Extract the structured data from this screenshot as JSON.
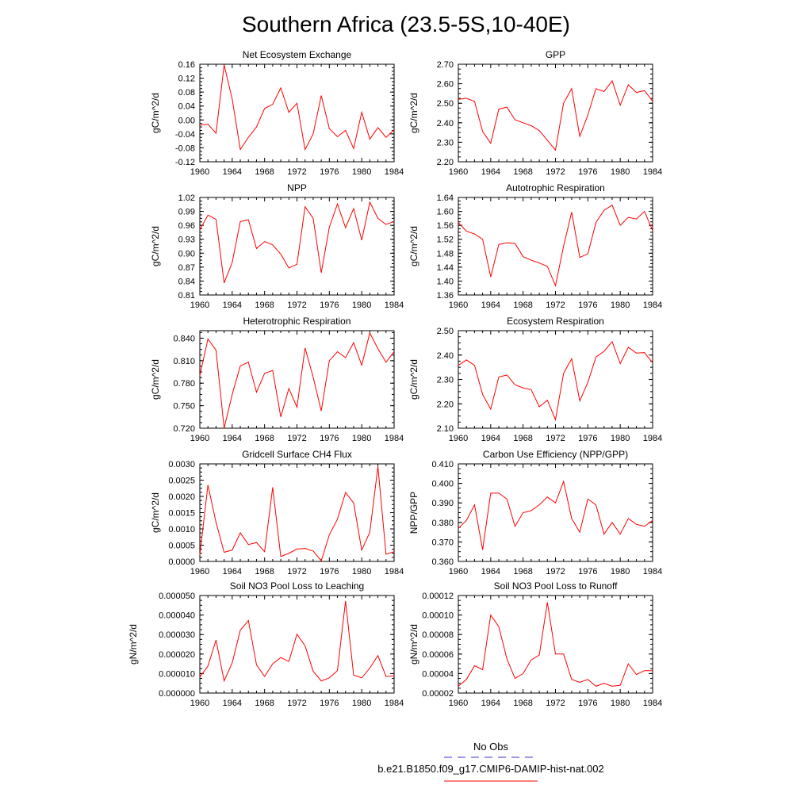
{
  "figure": {
    "title": "Southern Africa (23.5-5S,10-40E)",
    "legend": [
      {
        "label": "No Obs",
        "color": "#3333cc",
        "dashed": true
      },
      {
        "label": "b.e21.B1850.f09_g17.CMIP6-DAMIP-hist-nat.002",
        "color": "#ff0000",
        "dashed": false
      }
    ]
  },
  "chart_data": [
    {
      "type": "line",
      "title": "Net Ecosystem Exchange",
      "ylabel": "gC/m^2/d",
      "x": [
        1960,
        1961,
        1962,
        1963,
        1964,
        1965,
        1966,
        1967,
        1968,
        1969,
        1970,
        1971,
        1972,
        1973,
        1974,
        1975,
        1976,
        1977,
        1978,
        1979,
        1980,
        1981,
        1982,
        1983,
        1984
      ],
      "xlim": [
        1960,
        1984
      ],
      "xticks": [
        "1960",
        "1964",
        "1968",
        "1972",
        "1976",
        "1980",
        "1984"
      ],
      "ylim": [
        -0.12,
        0.16
      ],
      "yticks": [
        "-0.12",
        "-0.08",
        "-0.04",
        "0.00",
        "0.04",
        "0.08",
        "0.12",
        "0.16"
      ],
      "series": [
        {
          "color": "#ff0000",
          "values": [
            -0.015,
            -0.012,
            -0.038,
            0.158,
            0.06,
            -0.085,
            -0.05,
            -0.02,
            0.033,
            0.045,
            0.092,
            0.022,
            0.048,
            -0.085,
            -0.04,
            0.07,
            -0.025,
            -0.048,
            -0.03,
            -0.082,
            0.022,
            -0.055,
            -0.022,
            -0.05,
            -0.028
          ]
        }
      ]
    },
    {
      "type": "line",
      "title": "GPP",
      "ylabel": "gC/m^2/d",
      "x": [
        1960,
        1961,
        1962,
        1963,
        1964,
        1965,
        1966,
        1967,
        1968,
        1969,
        1970,
        1971,
        1972,
        1973,
        1974,
        1975,
        1976,
        1977,
        1978,
        1979,
        1980,
        1981,
        1982,
        1983,
        1984
      ],
      "xlim": [
        1960,
        1984
      ],
      "xticks": [
        "1960",
        "1964",
        "1968",
        "1972",
        "1976",
        "1980",
        "1984"
      ],
      "ylim": [
        2.2,
        2.7
      ],
      "yticks": [
        "2.20",
        "2.30",
        "2.40",
        "2.50",
        "2.60",
        "2.70"
      ],
      "series": [
        {
          "color": "#ff0000",
          "values": [
            2.52,
            2.525,
            2.51,
            2.355,
            2.295,
            2.47,
            2.48,
            2.415,
            2.4,
            2.385,
            2.36,
            2.31,
            2.26,
            2.5,
            2.575,
            2.33,
            2.44,
            2.575,
            2.56,
            2.615,
            2.49,
            2.595,
            2.555,
            2.565,
            2.51
          ]
        }
      ]
    },
    {
      "type": "line",
      "title": "NPP",
      "ylabel": "gC/m^2/d",
      "x": [
        1960,
        1961,
        1962,
        1963,
        1964,
        1965,
        1966,
        1967,
        1968,
        1969,
        1970,
        1971,
        1972,
        1973,
        1974,
        1975,
        1976,
        1977,
        1978,
        1979,
        1980,
        1981,
        1982,
        1983,
        1984
      ],
      "xlim": [
        1960,
        1984
      ],
      "xticks": [
        "1960",
        "1964",
        "1968",
        "1972",
        "1976",
        "1980",
        "1984"
      ],
      "ylim": [
        0.81,
        1.02
      ],
      "yticks": [
        "0.81",
        "0.84",
        "0.87",
        "0.90",
        "0.93",
        "0.96",
        "0.99",
        "1.02"
      ],
      "series": [
        {
          "color": "#ff0000",
          "values": [
            0.95,
            0.982,
            0.973,
            0.836,
            0.88,
            0.968,
            0.972,
            0.91,
            0.925,
            0.918,
            0.898,
            0.868,
            0.876,
            1.0,
            0.975,
            0.858,
            0.956,
            1.006,
            0.955,
            0.996,
            0.928,
            1.01,
            0.975,
            0.962,
            0.968
          ]
        }
      ]
    },
    {
      "type": "line",
      "title": "Autotrophic Respiration",
      "ylabel": "gC/m^2/d",
      "x": [
        1960,
        1961,
        1962,
        1963,
        1964,
        1965,
        1966,
        1967,
        1968,
        1969,
        1970,
        1971,
        1972,
        1973,
        1974,
        1975,
        1976,
        1977,
        1978,
        1979,
        1980,
        1981,
        1982,
        1983,
        1984
      ],
      "xlim": [
        1960,
        1984
      ],
      "xticks": [
        "1960",
        "1964",
        "1968",
        "1972",
        "1976",
        "1980",
        "1984"
      ],
      "ylim": [
        1.36,
        1.64
      ],
      "yticks": [
        "1.36",
        "1.40",
        "1.44",
        "1.48",
        "1.52",
        "1.56",
        "1.60",
        "1.64"
      ],
      "series": [
        {
          "color": "#ff0000",
          "values": [
            1.568,
            1.543,
            1.535,
            1.52,
            1.412,
            1.505,
            1.51,
            1.508,
            1.47,
            1.46,
            1.452,
            1.442,
            1.387,
            1.5,
            1.598,
            1.468,
            1.478,
            1.568,
            1.603,
            1.618,
            1.56,
            1.583,
            1.578,
            1.6,
            1.545
          ]
        }
      ]
    },
    {
      "type": "line",
      "title": "Heterotrophic Respiration",
      "ylabel": "gC/m^2/d",
      "x": [
        1960,
        1961,
        1962,
        1963,
        1964,
        1965,
        1966,
        1967,
        1968,
        1969,
        1970,
        1971,
        1972,
        1973,
        1974,
        1975,
        1976,
        1977,
        1978,
        1979,
        1980,
        1981,
        1982,
        1983,
        1984
      ],
      "xlim": [
        1960,
        1984
      ],
      "xticks": [
        "1960",
        "1964",
        "1968",
        "1972",
        "1976",
        "1980",
        "1984"
      ],
      "ylim": [
        0.72,
        0.85
      ],
      "yticks": [
        "0.720",
        "0.750",
        "0.780",
        "0.810",
        "0.840"
      ],
      "series": [
        {
          "color": "#ff0000",
          "values": [
            0.79,
            0.839,
            0.824,
            0.72,
            0.765,
            0.803,
            0.808,
            0.768,
            0.793,
            0.797,
            0.735,
            0.773,
            0.748,
            0.827,
            0.788,
            0.743,
            0.81,
            0.822,
            0.814,
            0.834,
            0.804,
            0.847,
            0.826,
            0.808,
            0.822
          ]
        }
      ]
    },
    {
      "type": "line",
      "title": "Ecosystem Respiration",
      "ylabel": "gC/m^2/d",
      "x": [
        1960,
        1961,
        1962,
        1963,
        1964,
        1965,
        1966,
        1967,
        1968,
        1969,
        1970,
        1971,
        1972,
        1973,
        1974,
        1975,
        1976,
        1977,
        1978,
        1979,
        1980,
        1981,
        1982,
        1983,
        1984
      ],
      "xlim": [
        1960,
        1984
      ],
      "xticks": [
        "1960",
        "1964",
        "1968",
        "1972",
        "1976",
        "1980",
        "1984"
      ],
      "ylim": [
        2.1,
        2.5
      ],
      "yticks": [
        "2.10",
        "2.20",
        "2.30",
        "2.40",
        "2.50"
      ],
      "series": [
        {
          "color": "#ff0000",
          "values": [
            2.358,
            2.38,
            2.358,
            2.238,
            2.178,
            2.31,
            2.318,
            2.278,
            2.265,
            2.258,
            2.188,
            2.215,
            2.135,
            2.325,
            2.385,
            2.212,
            2.288,
            2.392,
            2.415,
            2.455,
            2.365,
            2.432,
            2.408,
            2.41,
            2.368
          ]
        }
      ]
    },
    {
      "type": "line",
      "title": "Gridcell Surface CH4 Flux",
      "ylabel": "gC/m^2/d",
      "x": [
        1960,
        1961,
        1962,
        1963,
        1964,
        1965,
        1966,
        1967,
        1968,
        1969,
        1970,
        1971,
        1972,
        1973,
        1974,
        1975,
        1976,
        1977,
        1978,
        1979,
        1980,
        1981,
        1982,
        1983,
        1984
      ],
      "xlim": [
        1960,
        1984
      ],
      "xticks": [
        "1960",
        "1964",
        "1968",
        "1972",
        "1976",
        "1980",
        "1984"
      ],
      "ylim": [
        0.0,
        0.003
      ],
      "yticks": [
        "0.0000",
        "0.0005",
        "0.0010",
        "0.0015",
        "0.0020",
        "0.0025",
        "0.0030"
      ],
      "series": [
        {
          "color": "#ff0000",
          "values": [
            0.0002,
            0.00235,
            0.0012,
            0.00028,
            0.00035,
            0.00088,
            0.00052,
            0.00058,
            0.0003,
            0.00228,
            0.00015,
            0.00025,
            0.00038,
            0.0004,
            0.00032,
            2e-05,
            0.00082,
            0.0013,
            0.00212,
            0.0018,
            0.00035,
            0.0009,
            0.00292,
            0.00022,
            0.0003
          ]
        }
      ]
    },
    {
      "type": "line",
      "title": "Carbon Use Efficiency (NPP/GPP)",
      "ylabel": "NPP/GPP",
      "x": [
        1960,
        1961,
        1962,
        1963,
        1964,
        1965,
        1966,
        1967,
        1968,
        1969,
        1970,
        1971,
        1972,
        1973,
        1974,
        1975,
        1976,
        1977,
        1978,
        1979,
        1980,
        1981,
        1982,
        1983,
        1984
      ],
      "xlim": [
        1960,
        1984
      ],
      "xticks": [
        "1960",
        "1964",
        "1968",
        "1972",
        "1976",
        "1980",
        "1984"
      ],
      "ylim": [
        0.36,
        0.41
      ],
      "yticks": [
        "0.360",
        "0.370",
        "0.380",
        "0.390",
        "0.400",
        "0.410"
      ],
      "series": [
        {
          "color": "#ff0000",
          "values": [
            0.377,
            0.381,
            0.389,
            0.366,
            0.395,
            0.395,
            0.392,
            0.378,
            0.385,
            0.386,
            0.389,
            0.393,
            0.39,
            0.401,
            0.382,
            0.375,
            0.392,
            0.389,
            0.374,
            0.38,
            0.374,
            0.382,
            0.379,
            0.378,
            0.381
          ]
        }
      ]
    },
    {
      "type": "line",
      "title": "Soil NO3 Pool Loss to Leaching",
      "ylabel": "gN/m^2/d",
      "x": [
        1960,
        1961,
        1962,
        1963,
        1964,
        1965,
        1966,
        1967,
        1968,
        1969,
        1970,
        1971,
        1972,
        1973,
        1974,
        1975,
        1976,
        1977,
        1978,
        1979,
        1980,
        1981,
        1982,
        1983,
        1984
      ],
      "xlim": [
        1960,
        1984
      ],
      "xticks": [
        "1960",
        "1964",
        "1968",
        "1972",
        "1976",
        "1980",
        "1984"
      ],
      "ylim": [
        0.0,
        5e-05
      ],
      "yticks": [
        "0.000000",
        "0.000010",
        "0.000020",
        "0.000030",
        "0.000040",
        "0.000050"
      ],
      "series": [
        {
          "color": "#ff0000",
          "values": [
            8.2e-06,
            1.38e-05,
            2.72e-05,
            6.2e-06,
            1.55e-05,
            3.22e-05,
            3.72e-05,
            1.45e-05,
            8.5e-06,
            1.5e-05,
            1.82e-05,
            1.62e-05,
            3.02e-05,
            2.42e-05,
            1.12e-05,
            6.2e-06,
            7.8e-06,
            1.15e-05,
            4.72e-05,
            9.2e-06,
            7.8e-06,
            1.28e-05,
            1.92e-05,
            8.5e-06,
            8.8e-06
          ]
        }
      ]
    },
    {
      "type": "line",
      "title": "Soil NO3 Pool Loss to Runoff",
      "ylabel": "gN/m^2/d",
      "x": [
        1960,
        1961,
        1962,
        1963,
        1964,
        1965,
        1966,
        1967,
        1968,
        1969,
        1970,
        1971,
        1972,
        1973,
        1974,
        1975,
        1976,
        1977,
        1978,
        1979,
        1980,
        1981,
        1982,
        1983,
        1984
      ],
      "xlim": [
        1960,
        1984
      ],
      "xticks": [
        "1960",
        "1964",
        "1968",
        "1972",
        "1976",
        "1980",
        "1984"
      ],
      "ylim": [
        2e-05,
        0.00012
      ],
      "yticks": [
        "0.00002",
        "0.00004",
        "0.00006",
        "0.00008",
        "0.00010",
        "0.00012"
      ],
      "series": [
        {
          "color": "#ff0000",
          "values": [
            2.7e-05,
            3.4e-05,
            4.8e-05,
            4.4e-05,
            0.0001,
            8.8e-05,
            5.5e-05,
            3.5e-05,
            4e-05,
            5.4e-05,
            5.9e-05,
            0.000113,
            6e-05,
            6e-05,
            3.4e-05,
            3.1e-05,
            3.4e-05,
            2.7e-05,
            3e-05,
            2.7e-05,
            2.8e-05,
            5e-05,
            3.9e-05,
            4.3e-05,
            4.3e-05
          ]
        }
      ]
    }
  ]
}
